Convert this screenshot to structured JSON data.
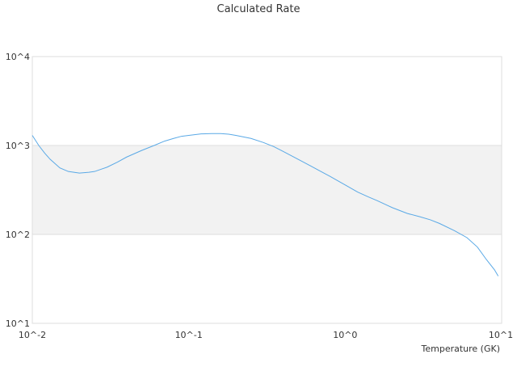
{
  "chart_data": {
    "type": "line",
    "title": "Calculated Rate",
    "xlabel": "Temperature (GK)",
    "ylabel": "",
    "x_scale": "log",
    "y_scale": "log",
    "xlim": [
      0.01,
      10
    ],
    "ylim": [
      10,
      10000
    ],
    "x_ticks": [
      {
        "value": 0.01,
        "label": "10^-2"
      },
      {
        "value": 0.1,
        "label": "10^-1"
      },
      {
        "value": 1,
        "label": "10^0"
      },
      {
        "value": 10,
        "label": "10^1"
      }
    ],
    "y_ticks": [
      {
        "value": 10,
        "label": "10^1"
      },
      {
        "value": 100,
        "label": "10^2"
      },
      {
        "value": 1000,
        "label": "10^3"
      },
      {
        "value": 10000,
        "label": "10^4"
      }
    ],
    "shaded_band": {
      "from": 100,
      "to": 1000,
      "color": "#f2f2f2"
    },
    "grid": true,
    "line_color": "#5aa9e6",
    "series": [
      {
        "x": [
          0.01,
          0.011,
          0.012,
          0.013,
          0.015,
          0.017,
          0.02,
          0.023,
          0.025,
          0.03,
          0.035,
          0.04,
          0.05,
          0.06,
          0.07,
          0.08,
          0.09,
          0.1,
          0.12,
          0.14,
          0.16,
          0.18,
          0.2,
          0.25,
          0.3,
          0.35,
          0.4,
          0.5,
          0.6,
          0.7,
          0.8,
          0.9,
          1.0,
          1.2,
          1.4,
          1.6,
          2.0,
          2.5,
          3.0,
          3.5,
          4.0,
          5.0,
          6.0,
          7.0,
          8.0,
          9.0,
          9.5
        ],
        "y": [
          1300,
          1000,
          820,
          700,
          560,
          510,
          490,
          500,
          510,
          570,
          650,
          740,
          880,
          1000,
          1120,
          1200,
          1270,
          1300,
          1350,
          1360,
          1360,
          1340,
          1300,
          1200,
          1080,
          970,
          860,
          700,
          590,
          510,
          450,
          400,
          360,
          300,
          265,
          240,
          200,
          172,
          158,
          146,
          133,
          110,
          92,
          72,
          52,
          40,
          34
        ]
      }
    ]
  }
}
